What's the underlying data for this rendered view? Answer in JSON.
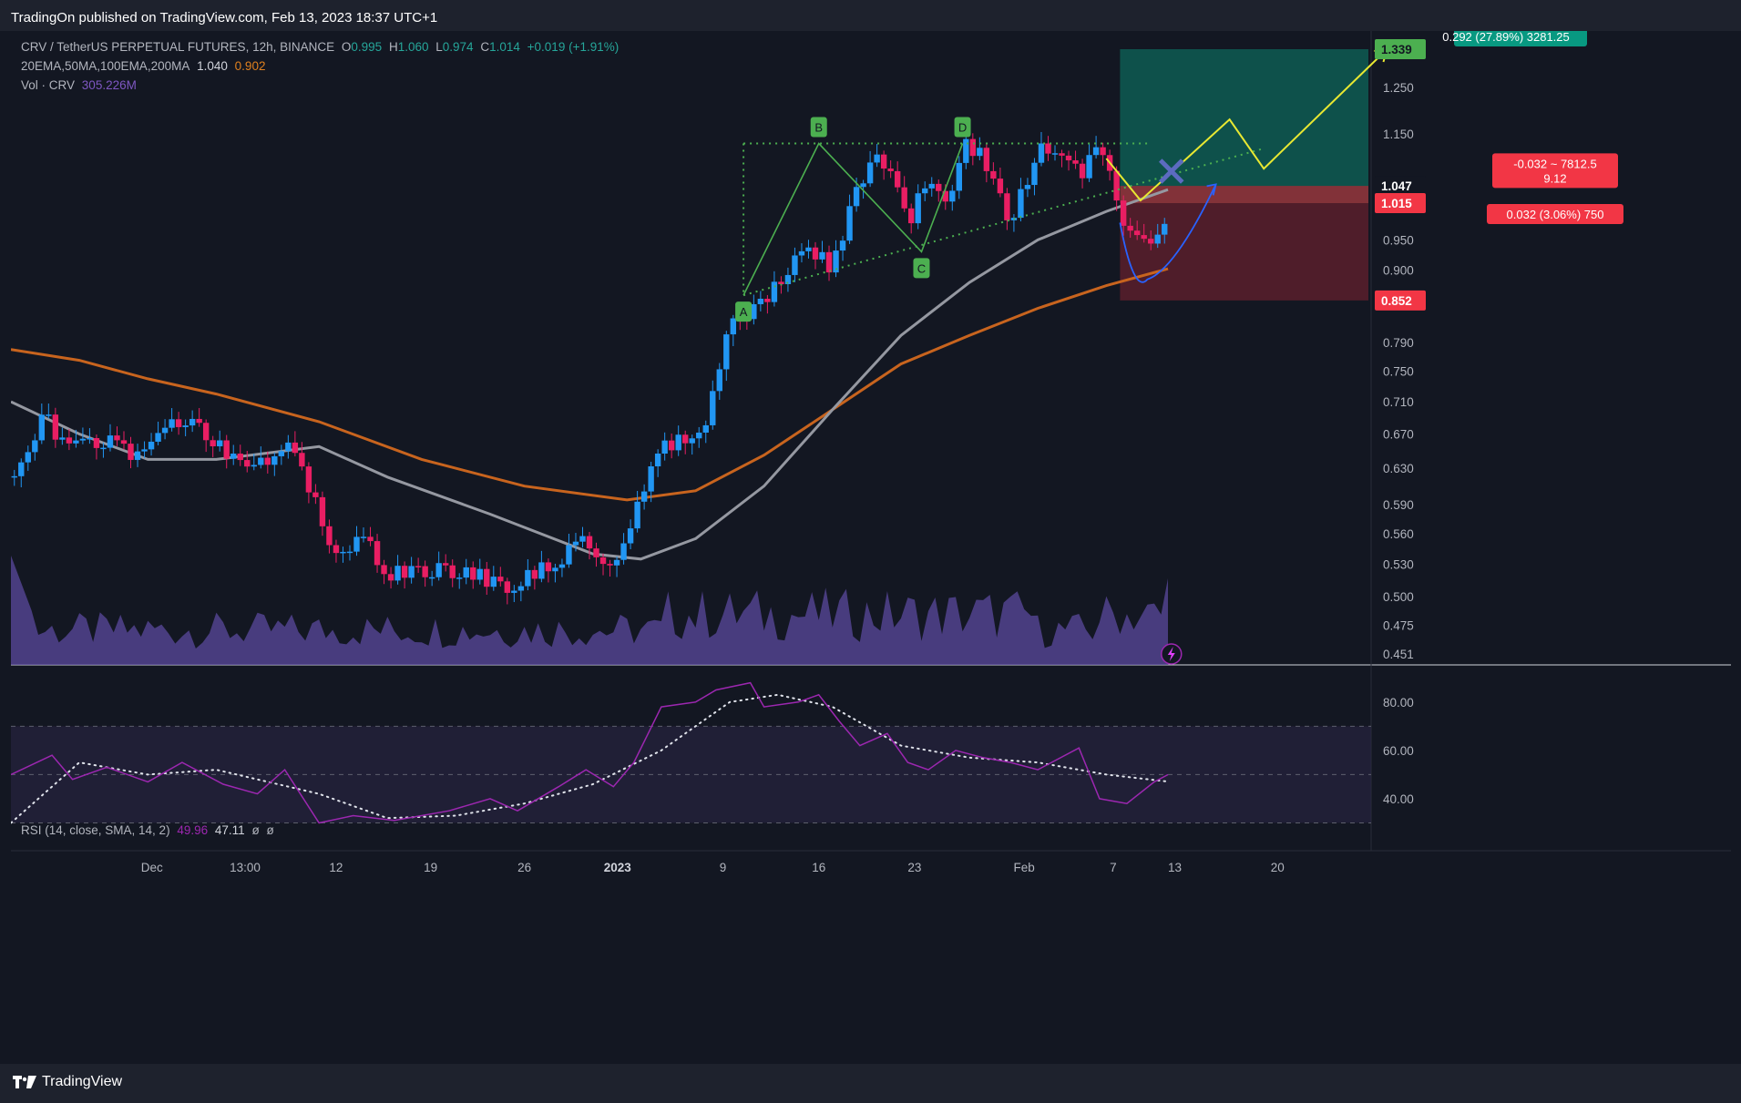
{
  "header": {
    "published": "TradingOn published on TradingView.com, Feb 13, 2023 18:37 UTC+1"
  },
  "legend": {
    "symbol": "CRV / TetherUS PERPETUAL FUTURES, 12h, BINANCE",
    "o_label": "O",
    "o_value": "0.995",
    "h_label": "H",
    "h_value": "1.060",
    "l_label": "L",
    "l_value": "0.974",
    "c_label": "C",
    "c_value": "1.014",
    "change": "+0.019 (+1.91%)",
    "ma_label": "20EMA,50MA,100EMA,200MA",
    "ma_value1": "1.040",
    "ma_value2": "0.902",
    "vol_label": "Vol · CRV",
    "vol_value": "305.226M",
    "rsi_label": "RSI (14, close, SMA, 14, 2)",
    "rsi_value": "49.96",
    "rsi_sma_value": "47.11",
    "rsi_extra1": "ø",
    "rsi_extra2": "ø"
  },
  "footer": {
    "brand": "TradingView"
  },
  "colors": {
    "background": "#131722",
    "up": "#2196f3",
    "down": "#e91e63",
    "ema_gray": "#9598a1",
    "ema_orange": "#c8641e",
    "rsi": "#9c27b0",
    "pattern_green": "#4caf50",
    "projection_yellow": "#e8e832",
    "target_zone": "#0e5c52",
    "stop_zone": "#5a1f2b"
  },
  "chart_data": {
    "type": "candlestick",
    "symbol": "CRV/USDT Perpetual",
    "timeframe": "12h",
    "price_axis": {
      "scale": "log",
      "ticks": [
        "1.250",
        "1.150",
        "0.950",
        "0.900",
        "0.790",
        "0.750",
        "0.710",
        "0.670",
        "0.630",
        "0.590",
        "0.560",
        "0.530",
        "0.500",
        "0.475",
        "0.451"
      ],
      "labels": [
        {
          "text": "1.339",
          "price": 1.339,
          "style": "target"
        },
        {
          "text": "1.047",
          "price": 1.047,
          "style": "current"
        },
        {
          "text": "1.015",
          "price": 1.015,
          "style": "entry"
        },
        {
          "text": "0.852",
          "price": 0.852,
          "style": "stop"
        }
      ]
    },
    "time_axis": [
      "Dec",
      "13:00",
      "12",
      "19",
      "26",
      "2023",
      "9",
      "16",
      "23",
      "Feb",
      "7",
      "13",
      "20"
    ],
    "price_path": [
      {
        "t": 0,
        "p": 0.62
      },
      {
        "t": 5,
        "p": 0.69
      },
      {
        "t": 8,
        "p": 0.65
      },
      {
        "t": 14,
        "p": 0.66
      },
      {
        "t": 19,
        "p": 0.64
      },
      {
        "t": 25,
        "p": 0.69
      },
      {
        "t": 31,
        "p": 0.65
      },
      {
        "t": 35,
        "p": 0.62
      },
      {
        "t": 40,
        "p": 0.66
      },
      {
        "t": 44,
        "p": 0.6
      },
      {
        "t": 47,
        "p": 0.545
      },
      {
        "t": 52,
        "p": 0.55
      },
      {
        "t": 55,
        "p": 0.52
      },
      {
        "t": 62,
        "p": 0.523
      },
      {
        "t": 68,
        "p": 0.52
      },
      {
        "t": 72,
        "p": 0.505
      },
      {
        "t": 75,
        "p": 0.515
      },
      {
        "t": 80,
        "p": 0.532
      },
      {
        "t": 84,
        "p": 0.553
      },
      {
        "t": 87,
        "p": 0.53
      },
      {
        "t": 90,
        "p": 0.545
      },
      {
        "t": 94,
        "p": 0.65
      },
      {
        "t": 99,
        "p": 0.665
      },
      {
        "t": 102,
        "p": 0.69
      },
      {
        "t": 105,
        "p": 0.83
      },
      {
        "t": 108,
        "p": 0.83
      },
      {
        "t": 111,
        "p": 0.86
      },
      {
        "t": 114,
        "p": 0.91
      },
      {
        "t": 117,
        "p": 0.93
      },
      {
        "t": 120,
        "p": 0.9
      },
      {
        "t": 124,
        "p": 1.05
      },
      {
        "t": 127,
        "p": 1.1
      },
      {
        "t": 129,
        "p": 1.05
      },
      {
        "t": 131,
        "p": 0.97
      },
      {
        "t": 134,
        "p": 1.07
      },
      {
        "t": 137,
        "p": 1.02
      },
      {
        "t": 139,
        "p": 1.13
      },
      {
        "t": 142,
        "p": 1.1
      },
      {
        "t": 144,
        "p": 1.03
      },
      {
        "t": 146,
        "p": 0.98
      },
      {
        "t": 148,
        "p": 1.04
      },
      {
        "t": 150,
        "p": 1.12
      },
      {
        "t": 152,
        "p": 1.09
      },
      {
        "t": 154,
        "p": 1.12
      },
      {
        "t": 156,
        "p": 1.06
      },
      {
        "t": 158,
        "p": 1.1
      },
      {
        "t": 160,
        "p": 1.12
      },
      {
        "t": 161,
        "p": 1.05
      },
      {
        "t": 163,
        "p": 0.96
      },
      {
        "t": 165,
        "p": 0.94
      },
      {
        "t": 167,
        "p": 0.93
      },
      {
        "t": 168,
        "p": 0.96
      },
      {
        "t": 169,
        "p": 1.014
      }
    ],
    "ema_gray": [
      {
        "t": 0,
        "p": 0.71
      },
      {
        "t": 10,
        "p": 0.67
      },
      {
        "t": 20,
        "p": 0.64
      },
      {
        "t": 30,
        "p": 0.64
      },
      {
        "t": 45,
        "p": 0.655
      },
      {
        "t": 55,
        "p": 0.62
      },
      {
        "t": 70,
        "p": 0.58
      },
      {
        "t": 85,
        "p": 0.54
      },
      {
        "t": 92,
        "p": 0.535
      },
      {
        "t": 100,
        "p": 0.555
      },
      {
        "t": 110,
        "p": 0.61
      },
      {
        "t": 120,
        "p": 0.7
      },
      {
        "t": 130,
        "p": 0.8
      },
      {
        "t": 140,
        "p": 0.88
      },
      {
        "t": 150,
        "p": 0.95
      },
      {
        "t": 160,
        "p": 1.0
      },
      {
        "t": 169,
        "p": 1.04
      }
    ],
    "ema_orange": [
      {
        "t": 0,
        "p": 0.78
      },
      {
        "t": 10,
        "p": 0.765
      },
      {
        "t": 20,
        "p": 0.74
      },
      {
        "t": 30,
        "p": 0.72
      },
      {
        "t": 45,
        "p": 0.685
      },
      {
        "t": 60,
        "p": 0.64
      },
      {
        "t": 75,
        "p": 0.61
      },
      {
        "t": 90,
        "p": 0.595
      },
      {
        "t": 100,
        "p": 0.605
      },
      {
        "t": 110,
        "p": 0.645
      },
      {
        "t": 120,
        "p": 0.7
      },
      {
        "t": 130,
        "p": 0.76
      },
      {
        "t": 140,
        "p": 0.8
      },
      {
        "t": 150,
        "p": 0.84
      },
      {
        "t": 160,
        "p": 0.875
      },
      {
        "t": 169,
        "p": 0.902
      }
    ],
    "harmonic_pattern": [
      {
        "label": "A",
        "t": 107,
        "p": 0.86
      },
      {
        "label": "B",
        "t": 118,
        "p": 1.13
      },
      {
        "label": "C",
        "t": 133,
        "p": 0.93
      },
      {
        "label": "D",
        "t": 139,
        "p": 1.13
      }
    ],
    "position": {
      "target_label": "0.292 (27.89%) 3281.25",
      "loss_label": "-0.032 ~ 7812.5",
      "loss_ratio": "9.12",
      "entry_label": "0.032 (3.06%) 750",
      "entry": 1.015,
      "target": 1.339,
      "stop": 0.852
    },
    "rsi": {
      "ticks": [
        "80.00",
        "60.00",
        "40.00"
      ],
      "band_upper": 70,
      "band_mid": 50,
      "band_lower": 30,
      "values": [
        {
          "t": 0,
          "v": 50
        },
        {
          "t": 6,
          "v": 58
        },
        {
          "t": 9,
          "v": 48
        },
        {
          "t": 14,
          "v": 53
        },
        {
          "t": 20,
          "v": 47
        },
        {
          "t": 25,
          "v": 55
        },
        {
          "t": 31,
          "v": 46
        },
        {
          "t": 36,
          "v": 42
        },
        {
          "t": 40,
          "v": 52
        },
        {
          "t": 45,
          "v": 30
        },
        {
          "t": 50,
          "v": 33
        },
        {
          "t": 56,
          "v": 31
        },
        {
          "t": 64,
          "v": 35
        },
        {
          "t": 70,
          "v": 40
        },
        {
          "t": 74,
          "v": 35
        },
        {
          "t": 80,
          "v": 45
        },
        {
          "t": 84,
          "v": 52
        },
        {
          "t": 88,
          "v": 45
        },
        {
          "t": 91,
          "v": 55
        },
        {
          "t": 95,
          "v": 78
        },
        {
          "t": 100,
          "v": 80
        },
        {
          "t": 103,
          "v": 85
        },
        {
          "t": 108,
          "v": 88
        },
        {
          "t": 110,
          "v": 78
        },
        {
          "t": 115,
          "v": 80
        },
        {
          "t": 118,
          "v": 83
        },
        {
          "t": 121,
          "v": 72
        },
        {
          "t": 124,
          "v": 62
        },
        {
          "t": 128,
          "v": 67
        },
        {
          "t": 131,
          "v": 55
        },
        {
          "t": 134,
          "v": 52
        },
        {
          "t": 138,
          "v": 60
        },
        {
          "t": 142,
          "v": 57
        },
        {
          "t": 146,
          "v": 55
        },
        {
          "t": 150,
          "v": 52
        },
        {
          "t": 156,
          "v": 61
        },
        {
          "t": 159,
          "v": 40
        },
        {
          "t": 163,
          "v": 38
        },
        {
          "t": 167,
          "v": 47
        },
        {
          "t": 169,
          "v": 49.96
        }
      ],
      "sma": [
        {
          "t": 0,
          "v": 30
        },
        {
          "t": 10,
          "v": 55
        },
        {
          "t": 20,
          "v": 50
        },
        {
          "t": 30,
          "v": 52
        },
        {
          "t": 45,
          "v": 42
        },
        {
          "t": 55,
          "v": 32
        },
        {
          "t": 65,
          "v": 33
        },
        {
          "t": 75,
          "v": 38
        },
        {
          "t": 85,
          "v": 46
        },
        {
          "t": 95,
          "v": 60
        },
        {
          "t": 105,
          "v": 80
        },
        {
          "t": 112,
          "v": 83
        },
        {
          "t": 120,
          "v": 78
        },
        {
          "t": 130,
          "v": 62
        },
        {
          "t": 140,
          "v": 57
        },
        {
          "t": 150,
          "v": 55
        },
        {
          "t": 160,
          "v": 50
        },
        {
          "t": 169,
          "v": 47.11
        }
      ]
    },
    "volume": {
      "current": "305.226M"
    }
  }
}
